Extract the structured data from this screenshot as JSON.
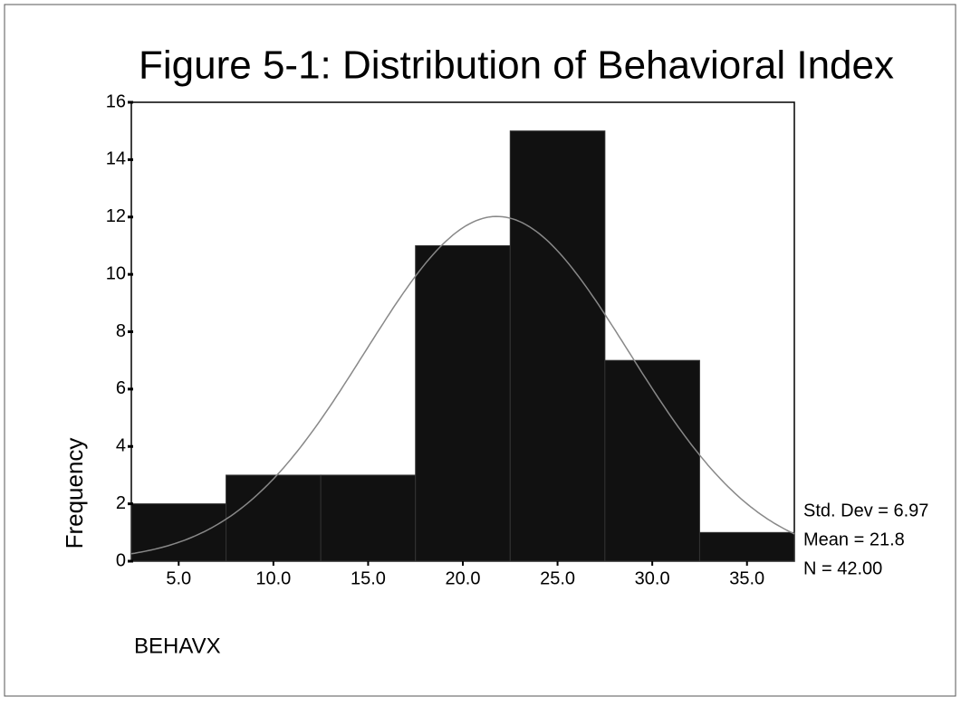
{
  "chart_data": {
    "type": "histogram",
    "title": "Figure 5-1: Distribution of Behavioral Index",
    "x_label": "BEHAVX",
    "y_label": "Frequency",
    "bins": [
      2.5,
      7.5,
      12.5,
      17.5,
      22.5,
      27.5,
      32.5,
      37.5
    ],
    "values": [
      2,
      3,
      3,
      11,
      15,
      7,
      1
    ],
    "color": "#111111",
    "xlim": [
      2.5,
      37.5
    ],
    "xticks": [
      {
        "value": 5,
        "label": "5.0"
      },
      {
        "value": 10,
        "label": "10.0"
      },
      {
        "value": 15,
        "label": "15.0"
      },
      {
        "value": 20,
        "label": "20.0"
      },
      {
        "value": 25,
        "label": "25.0"
      },
      {
        "value": 30,
        "label": "30.0"
      },
      {
        "value": 35,
        "label": "35.0"
      }
    ],
    "ylim": [
      0,
      16
    ],
    "yticks": [
      0,
      2,
      4,
      6,
      8,
      10,
      12,
      14,
      16
    ],
    "stats": [
      {
        "value": 6.97,
        "label": "Std. Dev = 6.97"
      },
      {
        "value": 21.8,
        "label": "Mean = 21.8"
      },
      {
        "value": 42,
        "label": "N = 42.00"
      }
    ]
  }
}
